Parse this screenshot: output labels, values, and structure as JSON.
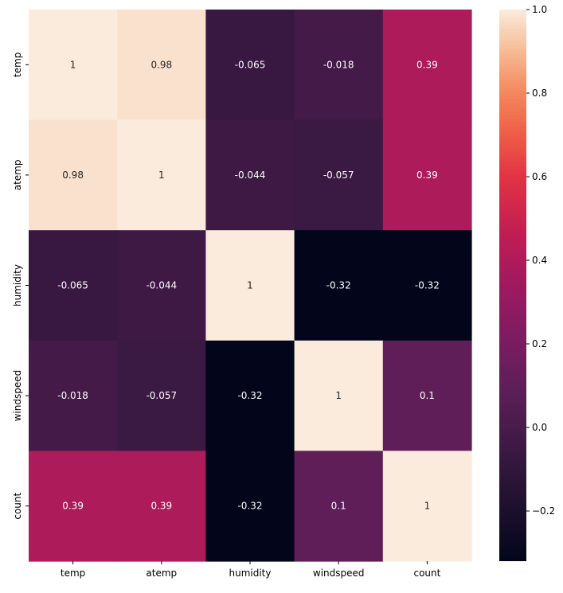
{
  "chart_data": {
    "type": "heatmap",
    "title": "",
    "xlabel": "",
    "ylabel": "",
    "x_labels": [
      "temp",
      "atemp",
      "humidity",
      "windspeed",
      "count"
    ],
    "y_labels": [
      "temp",
      "atemp",
      "humidity",
      "windspeed",
      "count"
    ],
    "values": [
      [
        1,
        0.98,
        -0.065,
        -0.018,
        0.39
      ],
      [
        0.98,
        1,
        -0.044,
        -0.057,
        0.39
      ],
      [
        -0.065,
        -0.044,
        1,
        -0.32,
        -0.32
      ],
      [
        -0.018,
        -0.057,
        -0.32,
        1,
        0.1
      ],
      [
        0.39,
        0.39,
        -0.32,
        0.1,
        1
      ]
    ],
    "annotations": [
      [
        "1",
        "0.98",
        "-0.065",
        "-0.018",
        "0.39"
      ],
      [
        "0.98",
        "1",
        "-0.044",
        "-0.057",
        "0.39"
      ],
      [
        "-0.065",
        "-0.044",
        "1",
        "-0.32",
        "-0.32"
      ],
      [
        "-0.018",
        "-0.057",
        "-0.32",
        "1",
        "0.1"
      ],
      [
        "0.39",
        "0.39",
        "-0.32",
        "0.1",
        "1"
      ]
    ],
    "colormap": "rocket",
    "vmin": -0.32,
    "vmax": 1.0,
    "colorbar": {
      "ticks": [
        -0.2,
        0.0,
        0.2,
        0.4,
        0.6,
        0.8,
        1.0
      ],
      "tick_labels": [
        "−0.2",
        "0.0",
        "0.2",
        "0.4",
        "0.6",
        "0.8",
        "1.0"
      ]
    },
    "grid": false,
    "legend": "colorbar-right"
  }
}
